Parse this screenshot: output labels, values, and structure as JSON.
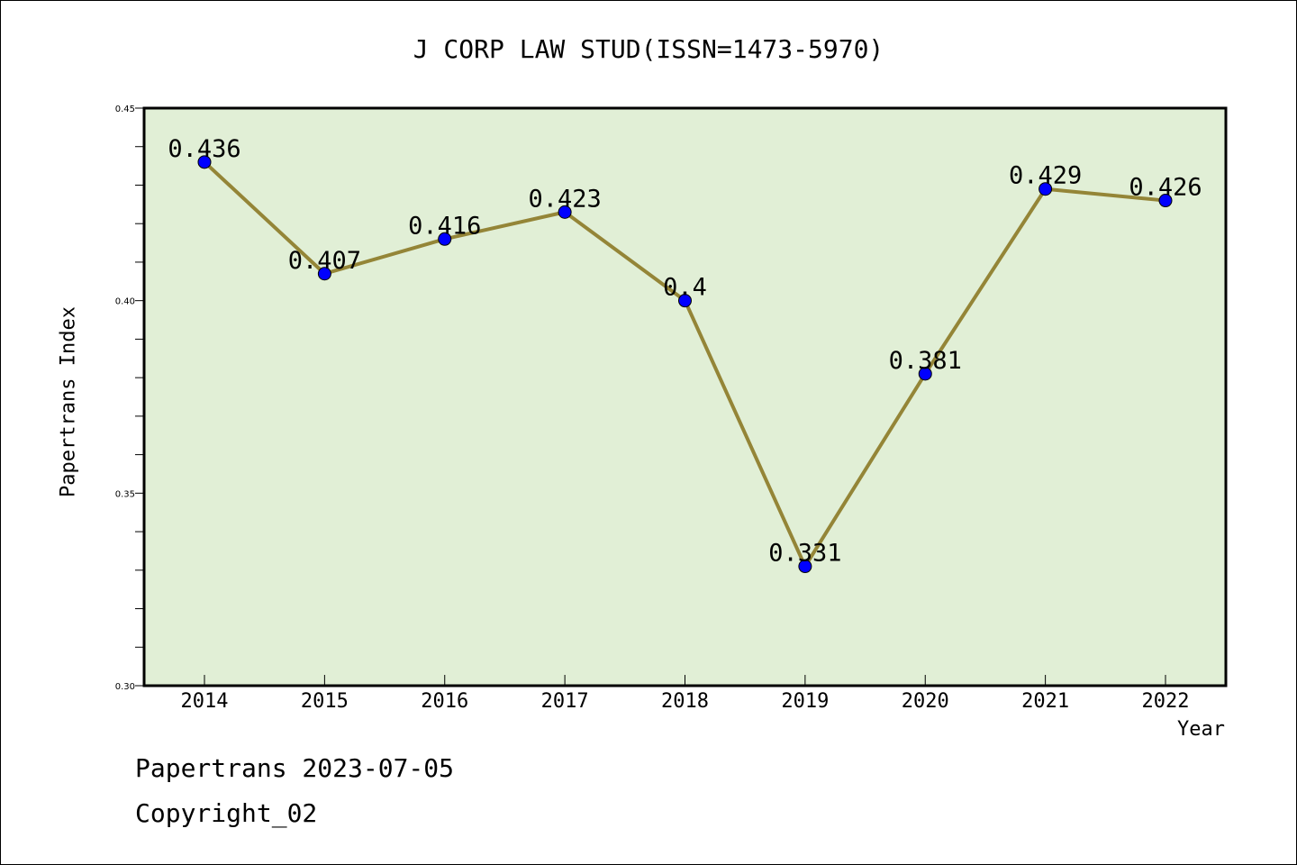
{
  "chart_data": {
    "type": "line",
    "title": "J CORP LAW STUD(ISSN=1473-5970)",
    "xlabel": "Year",
    "ylabel": "Papertrans Index",
    "categories": [
      "2014",
      "2015",
      "2016",
      "2017",
      "2018",
      "2019",
      "2020",
      "2021",
      "2022"
    ],
    "series": [
      {
        "values": [
          0.436,
          0.407,
          0.416,
          0.423,
          0.4,
          0.331,
          0.381,
          0.429,
          0.426
        ]
      }
    ],
    "data_labels": [
      "0.436",
      "0.407",
      "0.416",
      "0.423",
      "0.4",
      "0.331",
      "0.381",
      "0.429",
      "0.426"
    ],
    "ylim": [
      0.3,
      0.45
    ],
    "yticks": [
      "0.30",
      "0.35",
      "0.40",
      "0.45"
    ],
    "grid": false,
    "colors": {
      "plot_background": "#e1efd6",
      "line": "#948537",
      "marker": "#0000ff"
    }
  },
  "footer": {
    "line1": "Papertrans 2023-07-05",
    "line2": "Copyright_02"
  }
}
